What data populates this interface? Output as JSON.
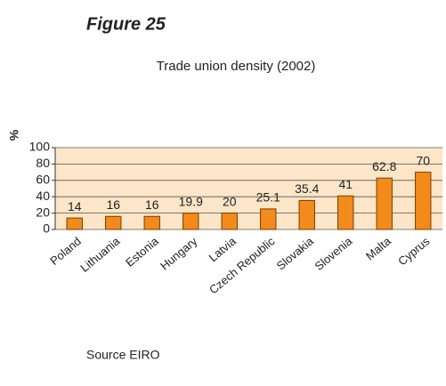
{
  "figure_label": "Figure 25",
  "source": "Source EIRO",
  "chart_data": {
    "type": "bar",
    "title": "Trade union density (2002)",
    "y_label": "%",
    "categories": [
      "Poland",
      "Lithuania",
      "Estonia",
      "Hungary",
      "Latvia",
      "Czech Republic",
      "Slovakia",
      "Slovenia",
      "Malta",
      "Cyprus"
    ],
    "values": [
      14,
      16,
      16,
      19.9,
      20,
      25.1,
      35.4,
      41,
      62.8,
      70
    ],
    "color": "#f28a1c",
    "ylim": [
      0,
      100
    ],
    "yticks": [
      0,
      20,
      40,
      60,
      80,
      100
    ],
    "grid": true
  }
}
